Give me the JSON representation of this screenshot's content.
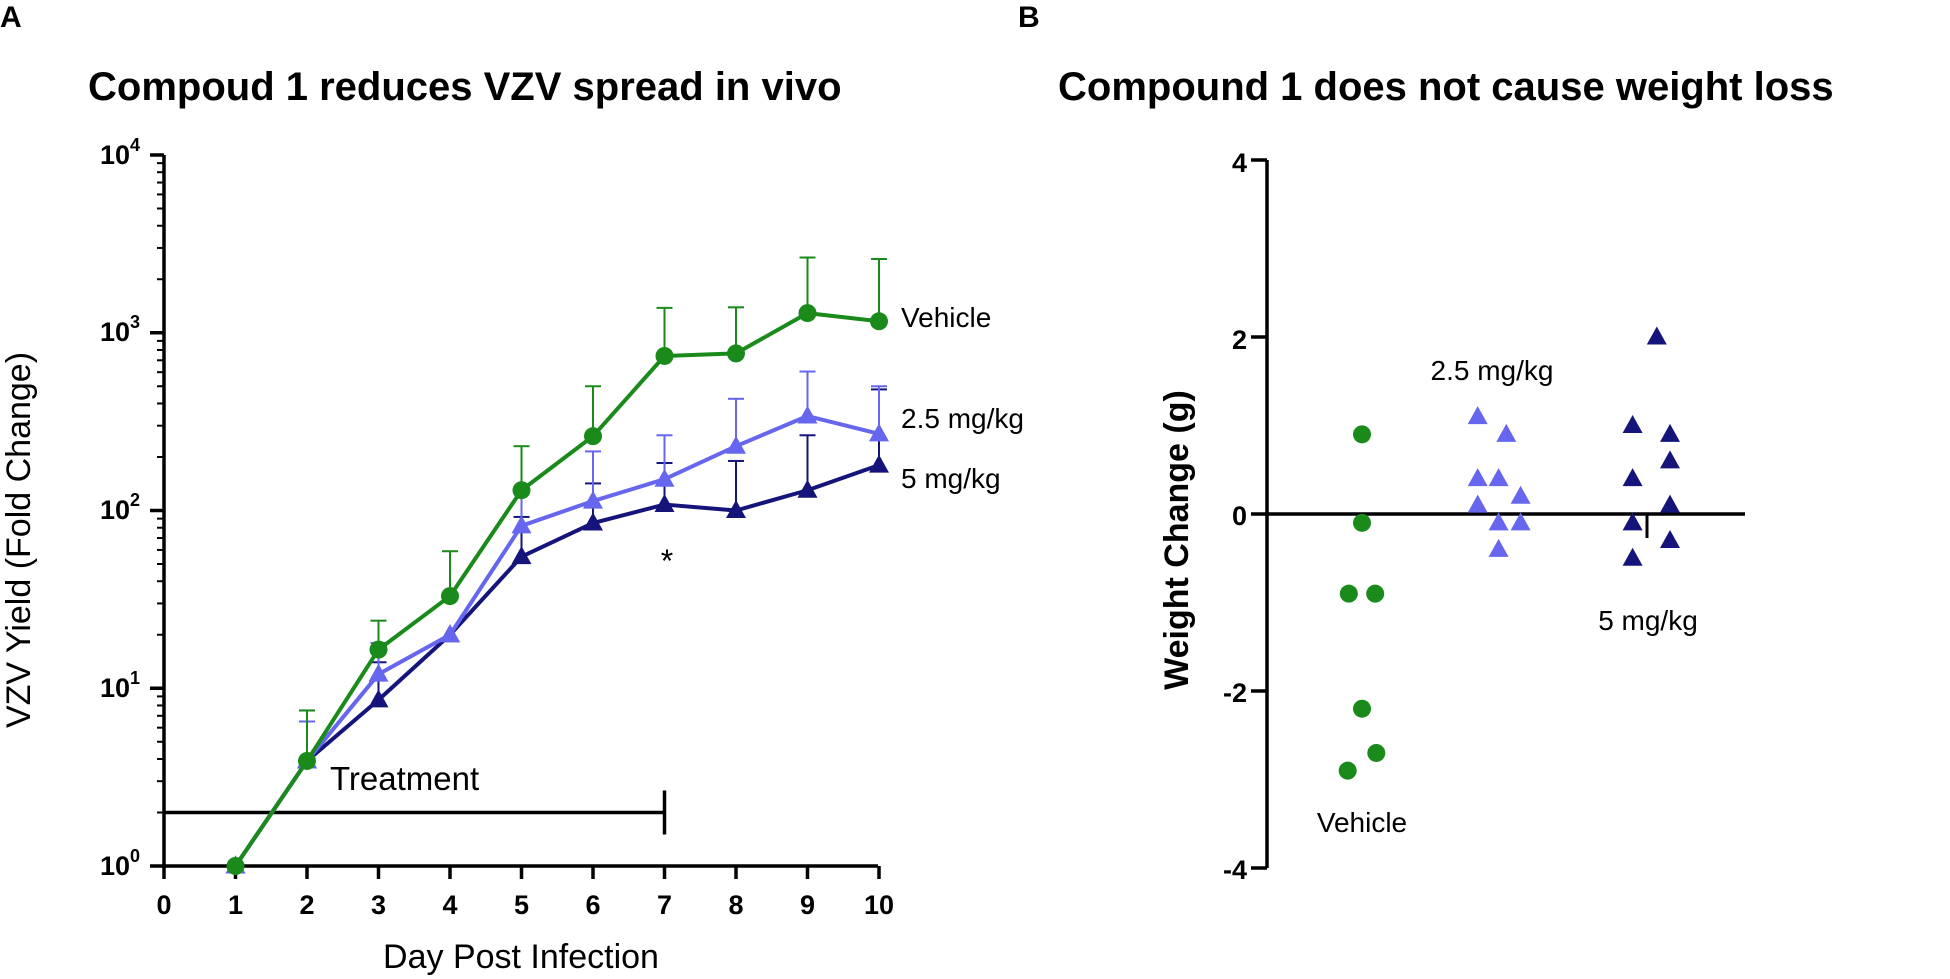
{
  "colors": {
    "vehicle": "#1a8a1a",
    "mid": "#6666ee",
    "high": "#14147a",
    "axis": "#000000"
  },
  "chart_data": [
    {
      "panel": "A",
      "type": "line",
      "title": "Compoud 1 reduces VZV spread in vivo",
      "xlabel": "Day Post Infection",
      "ylabel": "VZV Yield (Fold Change)",
      "yscale": "log",
      "ylim": [
        1,
        10000
      ],
      "xlim": [
        0,
        10
      ],
      "xticks": [
        "0",
        "1",
        "2",
        "3",
        "4",
        "5",
        "6",
        "7",
        "8",
        "9",
        "10"
      ],
      "yticks": [
        {
          "base": "10",
          "exp": "0",
          "value": 1
        },
        {
          "base": "10",
          "exp": "1",
          "value": 10
        },
        {
          "base": "10",
          "exp": "2",
          "value": 100
        },
        {
          "base": "10",
          "exp": "3",
          "value": 1000
        },
        {
          "base": "10",
          "exp": "4",
          "value": 10000
        }
      ],
      "x": [
        1,
        2,
        3,
        4,
        5,
        6,
        7,
        8,
        9,
        10
      ],
      "series": [
        {
          "name": "Vehicle",
          "color_key": "vehicle",
          "marker": "circle",
          "values": [
            1,
            3.9,
            16.5,
            33,
            130,
            262,
            740,
            765,
            1290,
            1160
          ],
          "error_upper": [
            1,
            7.5,
            24,
            59,
            230,
            500,
            1380,
            1390,
            2650,
            2600
          ]
        },
        {
          "name": "2.5 mg/kg",
          "color_key": "mid",
          "marker": "triangle",
          "values": [
            1,
            3.9,
            12,
            20,
            82,
            113,
            150,
            230,
            340,
            270
          ],
          "error_upper": [
            1,
            6.5,
            18,
            20,
            130,
            215,
            265,
            425,
            605,
            500
          ]
        },
        {
          "name": "5 mg/kg",
          "color_key": "high",
          "marker": "triangle",
          "values": [
            1,
            3.9,
            8.6,
            20,
            55,
            85,
            108,
            100,
            130,
            180
          ],
          "error_upper": [
            1,
            7.5,
            14,
            20,
            92,
            142,
            185,
            190,
            265,
            480
          ]
        }
      ],
      "annotations": {
        "treatment_label": "Treatment",
        "treatment_x": [
          0,
          7
        ],
        "treatment_y": 2,
        "significance": "*",
        "significance_x": 7
      },
      "series_labels": [
        "Vehicle",
        "2.5 mg/kg",
        "5 mg/kg"
      ]
    },
    {
      "panel": "B",
      "type": "scatter",
      "title": "Compound 1 does not cause weight loss",
      "xlabel": "",
      "ylabel": "Weight Change (g)",
      "ylim": [
        -4,
        4
      ],
      "yticks": [
        "4",
        "2",
        "0",
        "-2",
        "-4"
      ],
      "groups": [
        {
          "name": "Vehicle",
          "color_key": "vehicle",
          "marker": "circle",
          "points": [
            {
              "x": 0,
              "y": 0.9
            },
            {
              "x": 0,
              "y": -0.1
            },
            {
              "x": -0.6,
              "y": -0.9
            },
            {
              "x": 0.6,
              "y": -0.9
            },
            {
              "x": 0,
              "y": -2.2
            },
            {
              "x": -0.65,
              "y": -2.9
            },
            {
              "x": 0.65,
              "y": -2.7
            }
          ]
        },
        {
          "name": "2.5 mg/kg",
          "color_key": "mid",
          "marker": "triangle",
          "points": [
            {
              "x": -0.65,
              "y": 1.1
            },
            {
              "x": 0.65,
              "y": 0.9
            },
            {
              "x": -0.65,
              "y": 0.4
            },
            {
              "x": 0.3,
              "y": 0.4
            },
            {
              "x": -0.65,
              "y": 0.1
            },
            {
              "x": 1.3,
              "y": 0.2
            },
            {
              "x": 0.3,
              "y": -0.1
            },
            {
              "x": 1.3,
              "y": -0.1
            },
            {
              "x": 0.3,
              "y": -0.4
            }
          ]
        },
        {
          "name": "5 mg/kg",
          "color_key": "high",
          "marker": "triangle",
          "points": [
            {
              "x": 0.4,
              "y": 2.0
            },
            {
              "x": -0.7,
              "y": 1.0
            },
            {
              "x": 1.0,
              "y": 0.9
            },
            {
              "x": 1.0,
              "y": 0.6
            },
            {
              "x": -0.7,
              "y": 0.4
            },
            {
              "x": 1.0,
              "y": 0.1
            },
            {
              "x": -0.7,
              "y": -0.1
            },
            {
              "x": 1.0,
              "y": -0.3
            },
            {
              "x": -0.7,
              "y": -0.5
            }
          ]
        }
      ],
      "group_labels": [
        "Vehicle",
        "2.5 mg/kg",
        "5 mg/kg"
      ]
    }
  ],
  "panel_letters": [
    "A",
    "B"
  ]
}
